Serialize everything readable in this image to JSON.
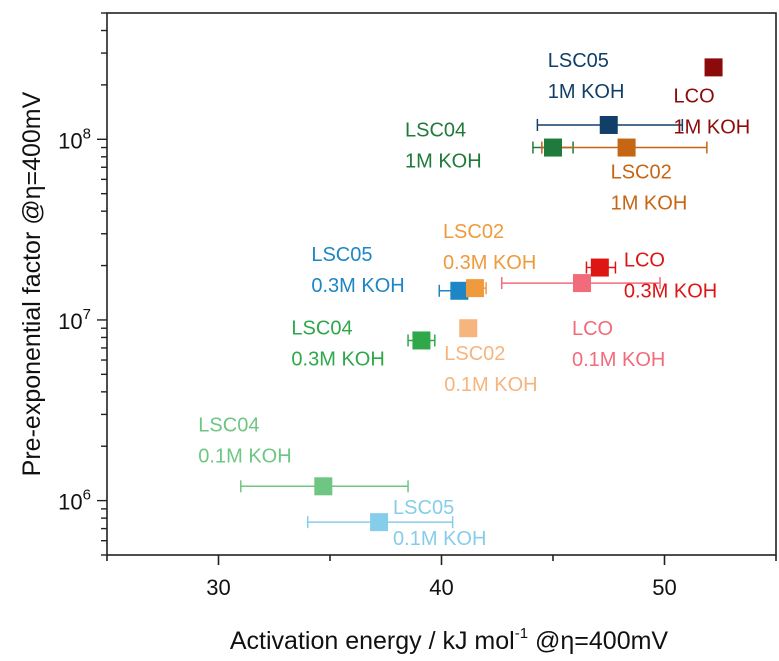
{
  "chart_data": {
    "type": "scatter",
    "title": "",
    "xlabel": "Activation energy / kJ mol",
    "xlabel_superscript": "-1",
    "xlabel_suffix": " @η=400mV",
    "ylabel": "Pre-exponential factor @η=400mV",
    "x_scale": "linear",
    "y_scale": "log",
    "xlim": [
      25,
      55
    ],
    "ylim": [
      500000,
      500000000
    ],
    "x_ticks": [
      {
        "value": 30,
        "label": "30"
      },
      {
        "value": 40,
        "label": "40"
      },
      {
        "value": 50,
        "label": "50"
      }
    ],
    "y_ticks": [
      {
        "value": 1000000,
        "base": "10",
        "exp": "6"
      },
      {
        "value": 10000000,
        "base": "10",
        "exp": "7"
      },
      {
        "value": 100000000,
        "base": "10",
        "exp": "8"
      }
    ],
    "grid": false,
    "legend": "none",
    "points": [
      {
        "material": "LSC04",
        "electrolyte": "0.1M KOH",
        "x": 34.7,
        "y": 1200000,
        "xerr_low": 3.7,
        "xerr_high": 3.8,
        "color": "#6ec682",
        "label_lines": [
          "LSC04",
          "0.1M KOH"
        ]
      },
      {
        "material": "LSC05",
        "electrolyte": "0.1M KOH",
        "x": 37.2,
        "y": 760000,
        "xerr_low": 3.2,
        "xerr_high": 3.3,
        "color": "#86cdea",
        "label_lines": [
          "LSC05",
          "0.1M KOH"
        ]
      },
      {
        "material": "LSC04",
        "electrolyte": "0.3M KOH",
        "x": 39.1,
        "y": 7700000,
        "xerr_low": 0.6,
        "xerr_high": 0.6,
        "color": "#2fa84a",
        "label_lines": [
          "LSC04",
          "0.3M KOH"
        ]
      },
      {
        "material": "LSC05",
        "electrolyte": "0.3M KOH",
        "x": 40.8,
        "y": 14500000,
        "xerr_low": 0.9,
        "xerr_high": 0.9,
        "color": "#1e86c4",
        "label_lines": [
          "LSC05",
          "0.3M KOH"
        ]
      },
      {
        "material": "LSC02",
        "electrolyte": "0.3M KOH",
        "x": 41.5,
        "y": 15000000,
        "xerr_low": 0.4,
        "xerr_high": 0.5,
        "color": "#ef9a3c",
        "label_lines": [
          "LSC02",
          "0.3M KOH"
        ]
      },
      {
        "material": "LSC02",
        "electrolyte": "0.1M KOH",
        "x": 41.2,
        "y": 9000000,
        "xerr_low": 0,
        "xerr_high": 0,
        "color": "#f6b57e",
        "label_lines": [
          "LSC02",
          "0.1M KOH"
        ]
      },
      {
        "material": "LCO",
        "electrolyte": "0.3M KOH",
        "x": 47.1,
        "y": 19500000,
        "xerr_low": 0.6,
        "xerr_high": 0.7,
        "color": "#dd1515",
        "label_lines": [
          "LCO",
          "0.3M KOH"
        ]
      },
      {
        "material": "LCO",
        "electrolyte": "0.1M KOH",
        "x": 46.3,
        "y": 16000000,
        "xerr_low": 3.6,
        "xerr_high": 3.5,
        "color": "#f26b7b",
        "label_lines": [
          "LCO",
          "0.1M KOH"
        ]
      },
      {
        "material": "LSC04",
        "electrolyte": "1M KOH",
        "x": 45.0,
        "y": 90000000,
        "xerr_low": 0.9,
        "xerr_high": 0.9,
        "color": "#1f7a3c",
        "label_lines": [
          "LSC04",
          "1M KOH"
        ]
      },
      {
        "material": "LSC05",
        "electrolyte": "1M KOH",
        "x": 47.5,
        "y": 120000000,
        "xerr_low": 3.2,
        "xerr_high": 3.3,
        "color": "#123f67",
        "label_lines": [
          "LSC05",
          "1M KOH"
        ]
      },
      {
        "material": "LSC02",
        "electrolyte": "1M KOH",
        "x": 48.3,
        "y": 90000000,
        "xerr_low": 3.8,
        "xerr_high": 3.6,
        "color": "#c46614",
        "label_lines": [
          "LSC02",
          "1M KOH"
        ]
      },
      {
        "material": "LCO",
        "electrolyte": "1M KOH",
        "x": 52.2,
        "y": 250000000,
        "xerr_low": 0,
        "xerr_high": 0,
        "color": "#8b0a0a",
        "label_lines": [
          "LCO",
          "1M KOH"
        ]
      }
    ]
  }
}
